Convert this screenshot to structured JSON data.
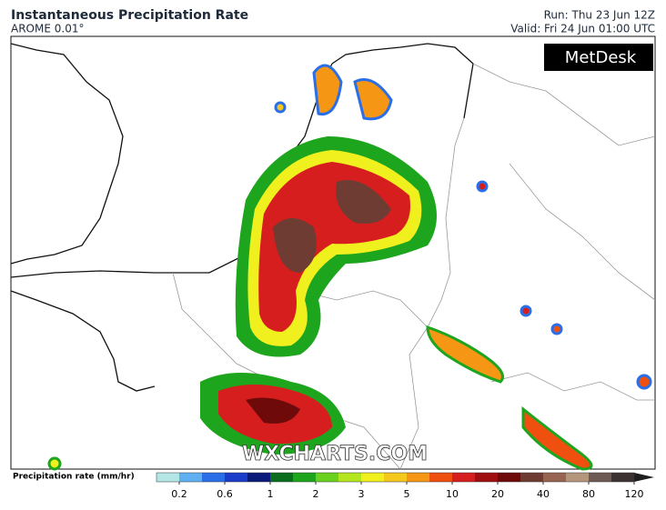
{
  "header": {
    "title": "Instantaneous Precipitation Rate",
    "model": "AROME 0.01°",
    "run": "Run: Thu 23 Jun 12Z",
    "valid": "Valid: Fri 24 Jun 01:00 UTC"
  },
  "brand": "MetDesk",
  "watermark": "WXCHARTS.COM",
  "legend": {
    "label": "Precipitation rate (mm/hr)",
    "ticks": [
      "0.2",
      "0.6",
      "1",
      "2",
      "3",
      "5",
      "10",
      "20",
      "40",
      "80",
      "120"
    ],
    "colors": [
      "#b4e6e6",
      "#5fb0f0",
      "#2b6fe8",
      "#1a3cc8",
      "#0a1a7a",
      "#0a6e1e",
      "#1ea51e",
      "#6ad21e",
      "#b4e61e",
      "#f0f01e",
      "#f5c81e",
      "#f59614",
      "#f0500f",
      "#d71e1e",
      "#a00f0f",
      "#6e0a0a",
      "#6e3c32",
      "#966450",
      "#b4967d",
      "#6e5a55",
      "#3c3232"
    ],
    "arrow_color": "#1e1e1e"
  }
}
